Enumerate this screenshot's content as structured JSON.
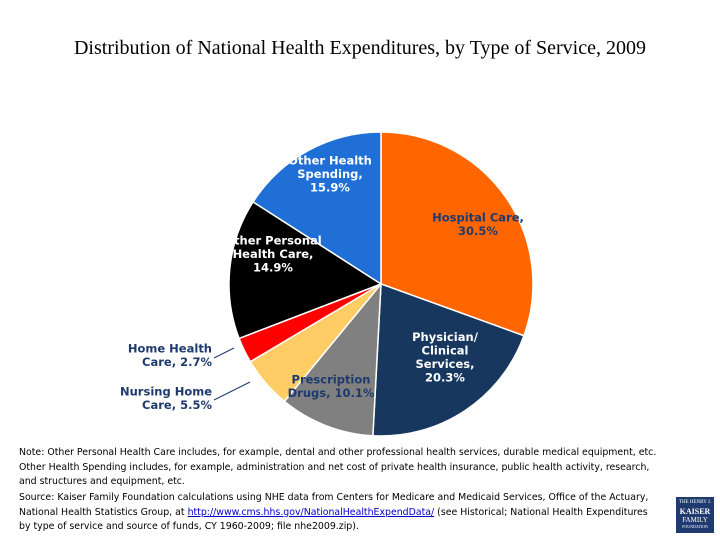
{
  "chart_data": {
    "type": "pie",
    "title": "Distribution of National Health Expenditures, by Type of Service, 2009",
    "slices": [
      {
        "name": "Hospital Care",
        "value": 30.5,
        "label_lines": [
          "Hospital Care,",
          "30.5%"
        ],
        "color": "#ff6600",
        "label_color": "#1f3a6e"
      },
      {
        "name": "Physician/ Clinical Services",
        "value": 20.3,
        "label_lines": [
          "Physician/",
          "Clinical",
          "Services,",
          "20.3%"
        ],
        "color": "#17375e",
        "label_color": "#ffffff"
      },
      {
        "name": "Prescription Drugs",
        "value": 10.1,
        "label_lines": [
          "Prescription",
          "Drugs, 10.1%"
        ],
        "color": "#808080",
        "label_color": "#1f3a6e"
      },
      {
        "name": "Nursing Home Care",
        "value": 5.5,
        "label_lines": [
          "Nursing Home",
          "Care, 5.5%"
        ],
        "color": "#ffcc66",
        "label_color": "#1f3a6e"
      },
      {
        "name": "Home Health Care",
        "value": 2.7,
        "label_lines": [
          "Home Health",
          "Care, 2.7%"
        ],
        "color": "#ff0000",
        "label_color": "#1f3a6e"
      },
      {
        "name": "Other Personal Health Care",
        "value": 14.9,
        "label_lines": [
          "Other Personal",
          "Health Care,",
          "14.9%"
        ],
        "color": "#000000",
        "label_color": "#ffffff"
      },
      {
        "name": "Other Health Spending",
        "value": 15.9,
        "label_lines": [
          "Other Health",
          "Spending,",
          "15.9%"
        ],
        "color": "#1f6fd6",
        "label_color": "#ffffff"
      }
    ]
  },
  "note": "Note: Other Personal Health Care includes, for example, dental and other professional health services, durable medical equipment, etc. Other Health Spending includes, for example, administration and net cost of private health insurance, public health activity, research, and structures and equipment, etc.",
  "source": {
    "before": "Source: Kaiser Family Foundation calculations using NHE data from Centers for Medicare and Medicaid Services, Office of the Actuary, National Health Statistics Group, at ",
    "link": "http://www.cms.hhs.gov/NationalHealthExpendData/",
    "after": " (see Historical; National Health Expenditures by type of service and source of funds, CY 1960-2009; file nhe2009.zip)."
  },
  "logo": {
    "line1": "THE HENRY J.",
    "line2": "KAISER",
    "line3": "FAMILY",
    "line4": "FOUNDATION"
  }
}
